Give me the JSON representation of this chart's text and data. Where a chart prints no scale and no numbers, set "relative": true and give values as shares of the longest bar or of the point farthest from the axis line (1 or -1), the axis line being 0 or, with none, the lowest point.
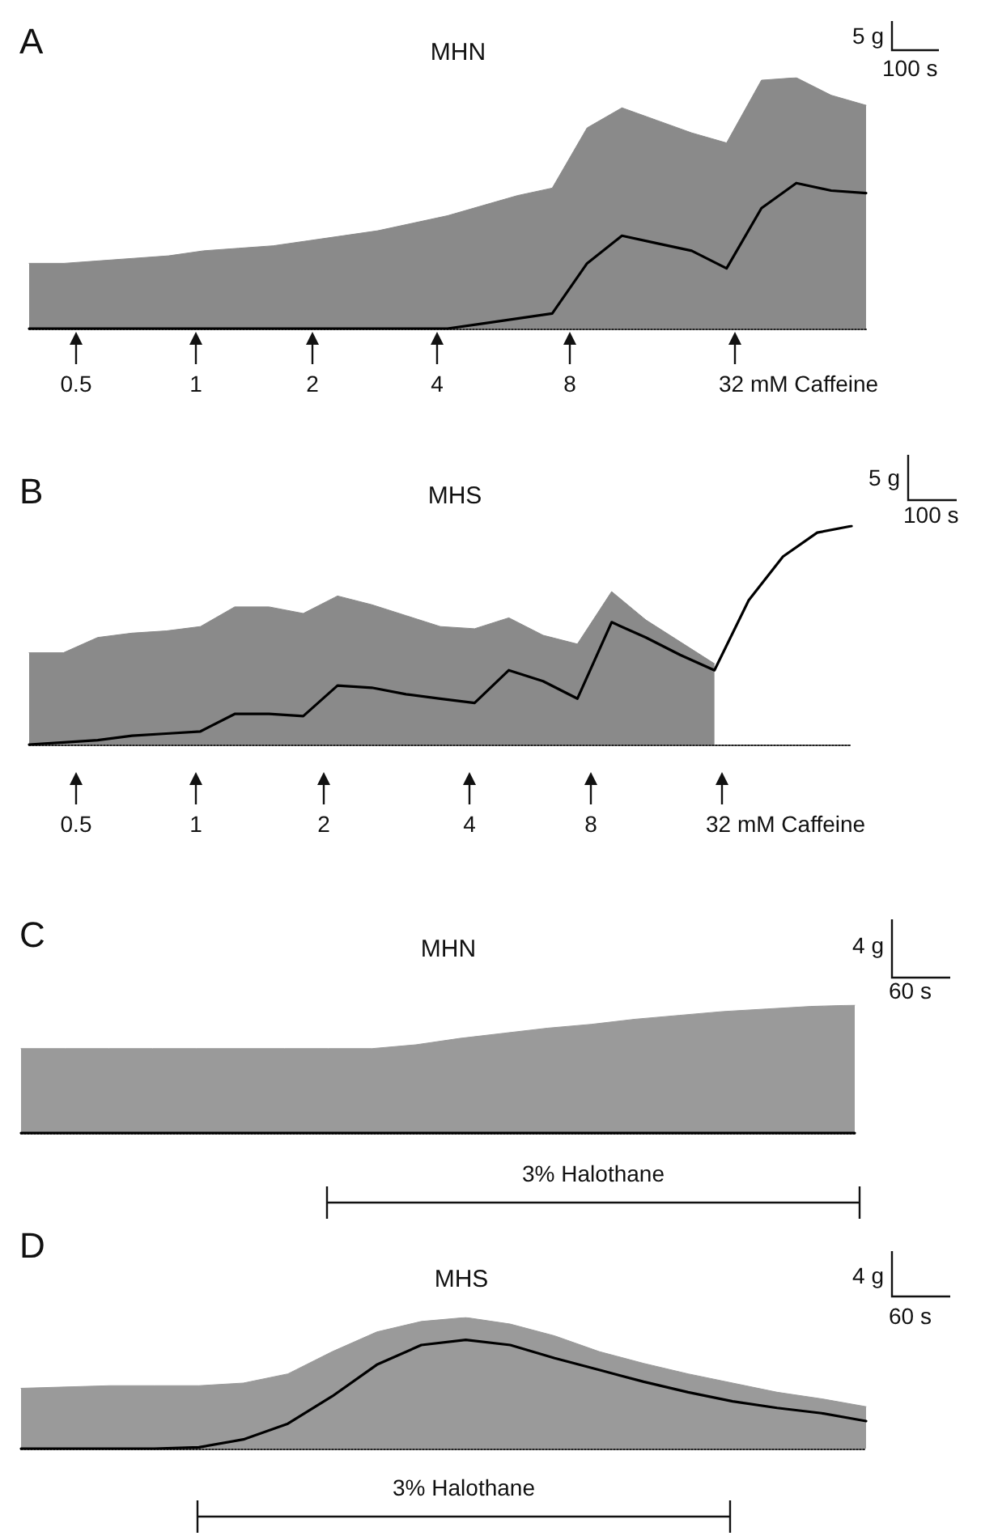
{
  "chart_data": [
    {
      "type": "area",
      "title": "MHN",
      "relative": true,
      "categories": [
        null,
        null,
        null,
        null,
        null,
        null,
        null,
        null,
        null,
        null,
        null,
        null,
        null,
        null,
        null,
        null,
        null,
        null,
        null,
        null,
        null,
        null,
        null,
        null,
        null
      ],
      "series": [
        {
          "color": "#8a8a8a",
          "values": [
            0.26,
            0.26,
            0.27,
            0.28,
            0.29,
            0.31,
            0.32,
            0.33,
            0.35,
            0.37,
            0.39,
            0.42,
            0.45,
            0.49,
            0.53,
            0.56,
            0.8,
            0.88,
            0.83,
            0.78,
            0.74,
            0.99,
            1.0,
            0.93,
            0.89
          ]
        },
        {
          "type": "line",
          "color": "#000000",
          "values": [
            0,
            0,
            0,
            0,
            0,
            0,
            0,
            0,
            0,
            0,
            0,
            0,
            0,
            0.02,
            0.04,
            0.06,
            0.26,
            0.37,
            0.34,
            0.31,
            0.24,
            0.48,
            0.58,
            0.55,
            0.54
          ]
        }
      ],
      "annotations": [
        "A",
        "5 g",
        "100 s",
        "0.5",
        "1",
        "2",
        "4",
        "8",
        "32 mM Caffeine"
      ]
    },
    {
      "type": "area",
      "title": "MHS",
      "relative": true,
      "categories": [
        null,
        null,
        null,
        null,
        null,
        null,
        null,
        null,
        null,
        null,
        null,
        null,
        null,
        null,
        null,
        null,
        null,
        null,
        null,
        null,
        null,
        null,
        null,
        null,
        null
      ],
      "series": [
        {
          "color": "#8a8a8a",
          "values": [
            0.42,
            0.42,
            0.49,
            0.51,
            0.52,
            0.54,
            0.63,
            0.63,
            0.6,
            0.68,
            0.64,
            0.59,
            0.54,
            0.53,
            0.58,
            0.5,
            0.46,
            0.7,
            0.57,
            0.47,
            0.37,
            null,
            null,
            null,
            null
          ]
        },
        {
          "type": "line",
          "color": "#000000",
          "values": [
            0,
            0.01,
            0.02,
            0.04,
            0.05,
            0.06,
            0.14,
            0.14,
            0.13,
            0.27,
            0.26,
            0.23,
            0.21,
            0.19,
            0.34,
            0.29,
            0.21,
            0.56,
            0.49,
            0.41,
            0.34,
            0.66,
            0.86,
            0.97,
            1.0
          ]
        }
      ],
      "annotations": [
        "B",
        "5 g",
        "100 s",
        "0.5",
        "1",
        "2",
        "4",
        "8",
        "32 mM Caffeine"
      ]
    },
    {
      "type": "area",
      "title": "MHN",
      "relative": true,
      "categories": [
        null,
        null,
        null,
        null,
        null,
        null,
        null,
        null,
        null,
        null,
        null,
        null,
        null,
        null,
        null,
        null,
        null,
        null,
        null,
        null
      ],
      "series": [
        {
          "color": "#9a9a9a",
          "values": [
            0.66,
            0.66,
            0.66,
            0.66,
            0.66,
            0.66,
            0.66,
            0.66,
            0.66,
            0.69,
            0.74,
            0.78,
            0.82,
            0.85,
            0.89,
            0.92,
            0.95,
            0.97,
            0.99,
            1.0
          ]
        },
        {
          "type": "line",
          "color": "#000000",
          "values": [
            0,
            0,
            0,
            0,
            0,
            0,
            0,
            0,
            0,
            0,
            0,
            0,
            0,
            0,
            0,
            0,
            0,
            0,
            0,
            0
          ]
        }
      ],
      "annotations": [
        "C",
        "4 g",
        "60 s",
        "3% Halothane"
      ]
    },
    {
      "type": "area",
      "title": "MHS",
      "relative": true,
      "categories": [
        null,
        null,
        null,
        null,
        null,
        null,
        null,
        null,
        null,
        null,
        null,
        null,
        null,
        null,
        null,
        null,
        null,
        null,
        null,
        null
      ],
      "series": [
        {
          "color": "#9a9a9a",
          "values": [
            0.46,
            0.47,
            0.48,
            0.48,
            0.48,
            0.5,
            0.57,
            0.74,
            0.89,
            0.97,
            1.0,
            0.95,
            0.86,
            0.74,
            0.65,
            0.57,
            0.5,
            0.43,
            0.38,
            0.32
          ]
        },
        {
          "type": "line",
          "color": "#000000",
          "values": [
            0,
            0,
            0,
            0,
            0.01,
            0.07,
            0.19,
            0.4,
            0.64,
            0.79,
            0.83,
            0.79,
            0.69,
            0.6,
            0.51,
            0.43,
            0.36,
            0.31,
            0.27,
            0.21
          ]
        }
      ],
      "annotations": [
        "D",
        "4 g",
        "60 s",
        "3% Halothane"
      ]
    }
  ]
}
